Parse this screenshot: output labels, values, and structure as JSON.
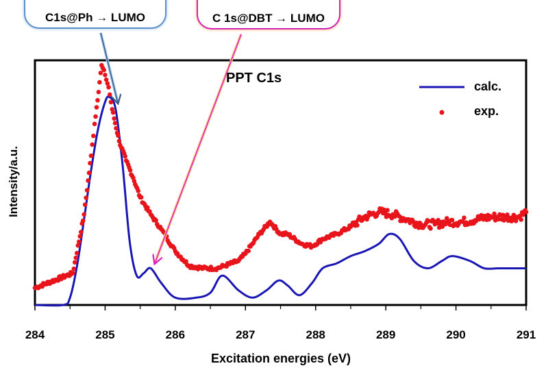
{
  "annotations": {
    "ph": "C1s@Ph → LUMO",
    "dbt": "C 1s@DBT → LUMO",
    "ph_color": "#5b8fc7",
    "dbt_color": "#e020c0"
  },
  "chart_data": {
    "type": "line",
    "title": "PPT C1s",
    "xlabel": "Excitation energies (eV)",
    "ylabel": "Intensity/a.u.",
    "xlim": [
      284,
      291
    ],
    "ylim": [
      0,
      1
    ],
    "xticks": [
      "284",
      "285",
      "286",
      "287",
      "288",
      "289",
      "290",
      "291"
    ],
    "grid": false,
    "legend_position": "top-right",
    "series": [
      {
        "name": "calc.",
        "style": "line",
        "color": "#1a16b4",
        "x": [
          284.0,
          284.4,
          284.5,
          284.6,
          284.7,
          284.8,
          284.9,
          285.0,
          285.06,
          285.15,
          285.25,
          285.35,
          285.45,
          285.55,
          285.65,
          285.8,
          286.0,
          286.3,
          286.5,
          286.67,
          286.9,
          287.1,
          287.3,
          287.47,
          287.6,
          287.77,
          287.95,
          288.1,
          288.3,
          288.5,
          288.7,
          288.9,
          289.05,
          289.2,
          289.4,
          289.6,
          289.8,
          289.95,
          290.2,
          290.4,
          290.6,
          290.8,
          291.0
        ],
        "y": [
          0,
          0,
          0.03,
          0.16,
          0.35,
          0.55,
          0.72,
          0.83,
          0.85,
          0.8,
          0.57,
          0.26,
          0.12,
          0.13,
          0.15,
          0.09,
          0.03,
          0.03,
          0.05,
          0.12,
          0.06,
          0.03,
          0.06,
          0.1,
          0.08,
          0.04,
          0.09,
          0.15,
          0.17,
          0.2,
          0.22,
          0.25,
          0.29,
          0.27,
          0.18,
          0.15,
          0.18,
          0.2,
          0.18,
          0.15,
          0.15,
          0.15,
          0.15
        ]
      },
      {
        "name": "exp.",
        "style": "scatter",
        "color": "#e8141c",
        "x": [
          284.0,
          284.54,
          284.7,
          284.8,
          284.85,
          284.95,
          285.0,
          285.05,
          285.1,
          285.2,
          285.3,
          285.4,
          285.5,
          285.65,
          285.8,
          286.0,
          286.2,
          286.4,
          286.6,
          286.7,
          286.9,
          287.0,
          287.1,
          287.2,
          287.35,
          287.5,
          287.6,
          287.8,
          287.95,
          288.1,
          288.3,
          288.5,
          288.7,
          288.9,
          289.1,
          289.3,
          289.5,
          289.7,
          289.9,
          290.1,
          290.3,
          290.5,
          290.7,
          290.9,
          291.0
        ],
        "y": [
          0.07,
          0.13,
          0.37,
          0.61,
          0.74,
          0.98,
          0.94,
          0.89,
          0.8,
          0.67,
          0.59,
          0.52,
          0.44,
          0.37,
          0.31,
          0.22,
          0.16,
          0.15,
          0.15,
          0.16,
          0.18,
          0.21,
          0.25,
          0.29,
          0.34,
          0.29,
          0.29,
          0.25,
          0.24,
          0.27,
          0.29,
          0.32,
          0.36,
          0.38,
          0.37,
          0.35,
          0.33,
          0.33,
          0.34,
          0.34,
          0.35,
          0.36,
          0.36,
          0.36,
          0.38
        ]
      }
    ]
  }
}
